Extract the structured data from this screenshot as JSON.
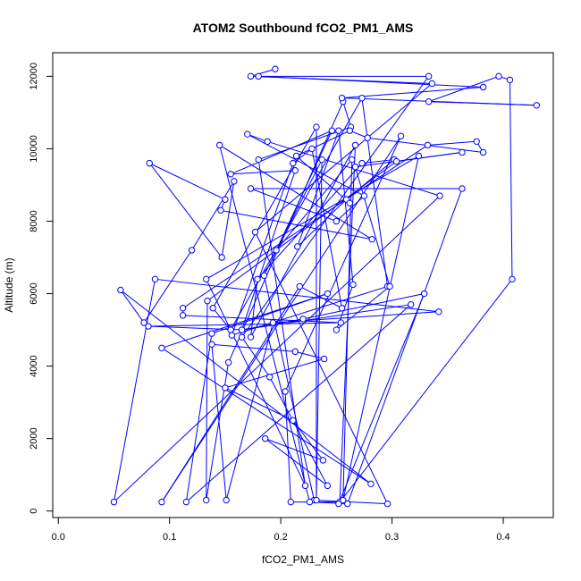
{
  "chart_data": {
    "type": "line",
    "title": "ATOM2 Southbound fCO2_PM1_AMS",
    "xlabel": "fCO2_PM1_AMS",
    "ylabel": "Altitude (m)",
    "xlim": [
      -0.005,
      0.445
    ],
    "ylim": [
      -180,
      12650
    ],
    "xticks": [
      0.0,
      0.1,
      0.2,
      0.3,
      0.4
    ],
    "xtick_labels": [
      "0.0",
      "0.1",
      "0.2",
      "0.3",
      "0.4"
    ],
    "yticks": [
      0,
      2000,
      4000,
      6000,
      8000,
      10000,
      12000
    ],
    "ytick_labels": [
      "0",
      "2000",
      "4000",
      "6000",
      "8000",
      "10000",
      "12000"
    ],
    "line_color": "#0000ff",
    "marker": "open-circle",
    "grid": false,
    "legend": "none",
    "series": [
      {
        "x": [
          0.195,
          0.173,
          0.336,
          0.177,
          0.296,
          0.23,
          0.185,
          0.237,
          0.232,
          0.232,
          0.139,
          0.155,
          0.273,
          0.296,
          0.156,
          0.211,
          0.228,
          0.255,
          0.217,
          0.093,
          0.308,
          0.204,
          0.209,
          0.253,
          0.267,
          0.173,
          0.179,
          0.273,
          0.302,
          0.259,
          0.215,
          0.252,
          0.265,
          0.25,
          0.298,
          0.267,
          0.363,
          0.304,
          0.134,
          0.133,
          0.153,
          0.256,
          0.263,
          0.18,
          0.222,
          0.133,
          0.324,
          0.256,
          0.264,
          0.196,
          0.246,
          0.155,
          0.213,
          0.165,
          0.317,
          0.115,
          0.138,
          0.242,
          0.093,
          0.281,
          0.056,
          0.077,
          0.12,
          0.158,
          0.147,
          0.082,
          0.15,
          0.146,
          0.282,
          0.145,
          0.226,
          0.26,
          0.363,
          0.173,
          0.25,
          0.275,
          0.17,
          0.188,
          0.343,
          0.05,
          0.087,
          0.342,
          0.193,
          0.151,
          0.138,
          0.213,
          0.239,
          0.15,
          0.211,
          0.238,
          0.186,
          0.242,
          0.19,
          0.165,
          0.333,
          0.18,
          0.382,
          0.255,
          0.43,
          0.333,
          0.396,
          0.406,
          0.408,
          0.252,
          0.329,
          0.22,
          0.165,
          0.081,
          0.254,
          0.112,
          0.112,
          0.332,
          0.376,
          0.382,
          0.278,
          0.262,
          0.214,
          0.262
        ],
        "y": [
          12200,
          12000,
          11800,
          7700,
          200,
          300,
          6500,
          9700,
          300,
          10600,
          5600,
          5000,
          11400,
          6200,
          4850,
          9600,
          10000,
          5600,
          6200,
          250,
          10350,
          3300,
          250,
          250,
          10100,
          4800,
          6400,
          9600,
          9700,
          8600,
          7300,
          10500,
          6250,
          5000,
          6200,
          9500,
          9900,
          9650,
          5800,
          300,
          4100,
          11300,
          10600,
          9700,
          700,
          6400,
          9800,
          300,
          9700,
          7200,
          10500,
          9300,
          9400,
          5000,
          5700,
          250,
          4900,
          6000,
          4500,
          750,
          6100,
          5200,
          7200,
          9100,
          7000,
          9600,
          8600,
          8300,
          7500,
          10100,
          250,
          200,
          8900,
          8900,
          8000,
          8700,
          10400,
          10200,
          8700,
          250,
          6400,
          5500,
          5200,
          300,
          4600,
          4400,
          4200,
          3400,
          2500,
          1400,
          2000,
          700,
          3700,
          4800,
          12000,
          12000,
          11700,
          11400,
          11200,
          11300,
          12000,
          11900,
          6400,
          200,
          6000,
          5300,
          5000,
          5100,
          5200,
          5400,
          5600,
          10100,
          10200,
          9900,
          10300,
          10500,
          9800,
          8500
        ]
      }
    ]
  }
}
